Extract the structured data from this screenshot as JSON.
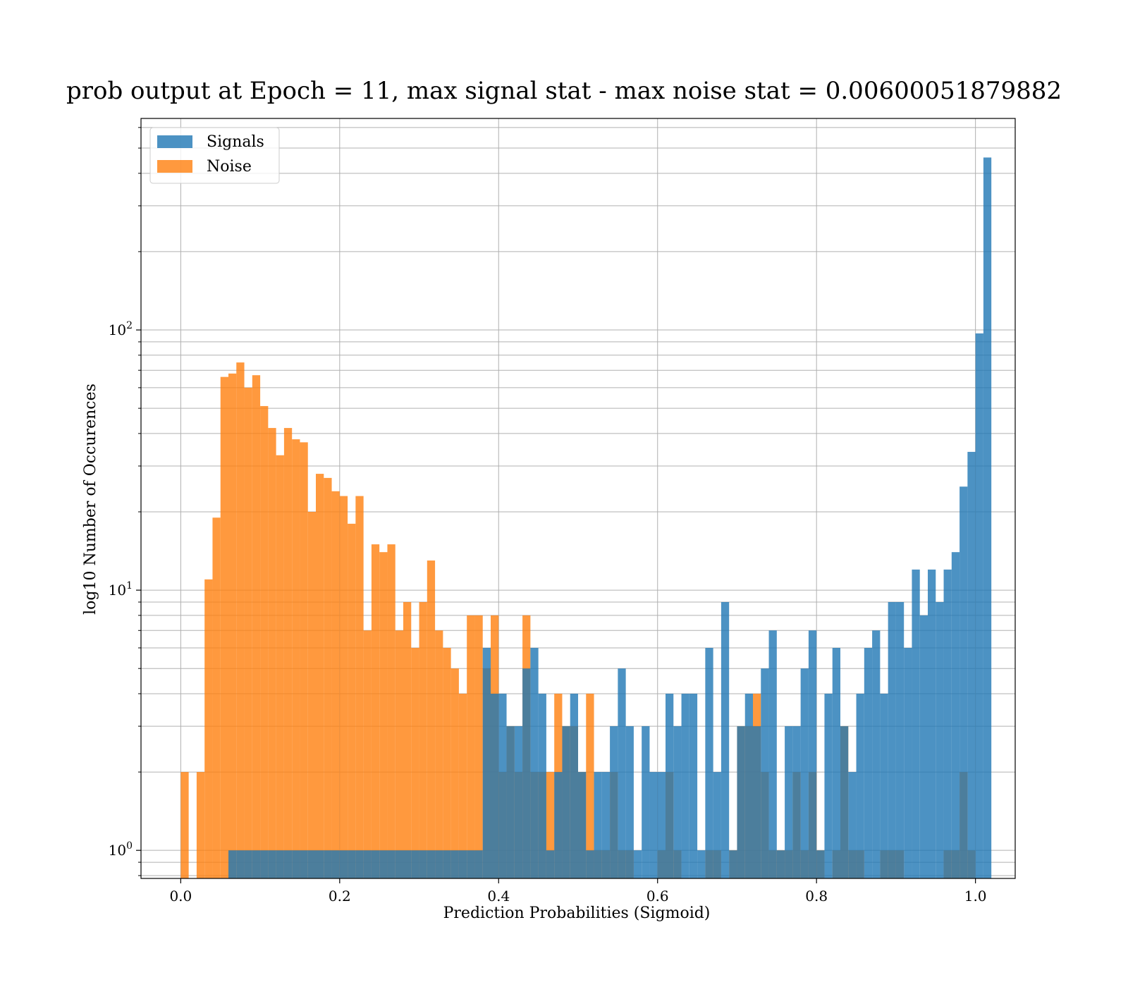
{
  "chart_data": {
    "type": "bar",
    "title": "prob output at Epoch = 11, max signal stat - max noise stat = 0.00600051879882",
    "xlabel": "Prediction Probabilities (Sigmoid)",
    "ylabel": "log10 Number of Occurences",
    "yscale": "log",
    "xlim": [
      -0.05,
      1.05
    ],
    "ylim": [
      0.78,
      650
    ],
    "x_ticks": [
      0.0,
      0.2,
      0.4,
      0.6,
      0.8,
      1.0
    ],
    "x_tick_labels": [
      "0.0",
      "0.2",
      "0.4",
      "0.6",
      "0.8",
      "1.0"
    ],
    "y_major_ticks": [
      1,
      10,
      100
    ],
    "y_tick_labels": [
      {
        "base": "10",
        "exp": "0"
      },
      {
        "base": "10",
        "exp": "1"
      },
      {
        "base": "10",
        "exp": "2"
      }
    ],
    "grid": true,
    "legend_position": "top-left",
    "bin_width": 0.01,
    "colors": {
      "signals": "#1f77b4",
      "noise": "#ff7f0e"
    },
    "series": [
      {
        "name": "Signals",
        "opacity": 0.8,
        "bins": [
          [
            0.06,
            1
          ],
          [
            0.07,
            1
          ],
          [
            0.08,
            1
          ],
          [
            0.09,
            1
          ],
          [
            0.1,
            1
          ],
          [
            0.11,
            1
          ],
          [
            0.12,
            1
          ],
          [
            0.13,
            1
          ],
          [
            0.14,
            1
          ],
          [
            0.15,
            1
          ],
          [
            0.16,
            1
          ],
          [
            0.17,
            1
          ],
          [
            0.18,
            1
          ],
          [
            0.19,
            1
          ],
          [
            0.2,
            1
          ],
          [
            0.21,
            1
          ],
          [
            0.22,
            1
          ],
          [
            0.23,
            1
          ],
          [
            0.24,
            1
          ],
          [
            0.25,
            1
          ],
          [
            0.26,
            1
          ],
          [
            0.27,
            1
          ],
          [
            0.28,
            1
          ],
          [
            0.29,
            1
          ],
          [
            0.3,
            1
          ],
          [
            0.31,
            1
          ],
          [
            0.32,
            1
          ],
          [
            0.33,
            1
          ],
          [
            0.34,
            1
          ],
          [
            0.35,
            1
          ],
          [
            0.36,
            1
          ],
          [
            0.37,
            1
          ],
          [
            0.38,
            6
          ],
          [
            0.39,
            4
          ],
          [
            0.4,
            4
          ],
          [
            0.41,
            3
          ],
          [
            0.42,
            3
          ],
          [
            0.43,
            5
          ],
          [
            0.44,
            6
          ],
          [
            0.45,
            4
          ],
          [
            0.46,
            1
          ],
          [
            0.47,
            2
          ],
          [
            0.48,
            3
          ],
          [
            0.49,
            4
          ],
          [
            0.5,
            2
          ],
          [
            0.51,
            1
          ],
          [
            0.52,
            2
          ],
          [
            0.53,
            2
          ],
          [
            0.54,
            3
          ],
          [
            0.55,
            5
          ],
          [
            0.56,
            3
          ],
          [
            0.57,
            1
          ],
          [
            0.58,
            3
          ],
          [
            0.59,
            2
          ],
          [
            0.6,
            2
          ],
          [
            0.61,
            4
          ],
          [
            0.62,
            3
          ],
          [
            0.63,
            4
          ],
          [
            0.64,
            4
          ],
          [
            0.65,
            1
          ],
          [
            0.66,
            6
          ],
          [
            0.67,
            2
          ],
          [
            0.68,
            9
          ],
          [
            0.69,
            1
          ],
          [
            0.7,
            3
          ],
          [
            0.71,
            4
          ],
          [
            0.72,
            3
          ],
          [
            0.73,
            5
          ],
          [
            0.74,
            7
          ],
          [
            0.75,
            1
          ],
          [
            0.76,
            3
          ],
          [
            0.77,
            3
          ],
          [
            0.78,
            5
          ],
          [
            0.79,
            7
          ],
          [
            0.8,
            1
          ],
          [
            0.81,
            4
          ],
          [
            0.82,
            6
          ],
          [
            0.83,
            3
          ],
          [
            0.84,
            2
          ],
          [
            0.85,
            4
          ],
          [
            0.86,
            6
          ],
          [
            0.87,
            7
          ],
          [
            0.88,
            4
          ],
          [
            0.89,
            9
          ],
          [
            0.9,
            9
          ],
          [
            0.91,
            6
          ],
          [
            0.92,
            12
          ],
          [
            0.93,
            8
          ],
          [
            0.94,
            12
          ],
          [
            0.95,
            9
          ],
          [
            0.96,
            12
          ],
          [
            0.97,
            14
          ],
          [
            0.98,
            25
          ],
          [
            0.99,
            34
          ],
          [
            1.0,
            97
          ],
          [
            1.01,
            460
          ]
        ]
      },
      {
        "name": "Noise",
        "opacity": 0.8,
        "bins": [
          [
            0.0,
            2
          ],
          [
            0.02,
            2
          ],
          [
            0.03,
            11
          ],
          [
            0.04,
            19
          ],
          [
            0.05,
            66
          ],
          [
            0.06,
            68
          ],
          [
            0.07,
            75
          ],
          [
            0.08,
            60
          ],
          [
            0.09,
            67
          ],
          [
            0.1,
            51
          ],
          [
            0.11,
            42
          ],
          [
            0.12,
            33
          ],
          [
            0.13,
            42
          ],
          [
            0.14,
            38
          ],
          [
            0.15,
            37
          ],
          [
            0.16,
            20
          ],
          [
            0.17,
            28
          ],
          [
            0.18,
            27
          ],
          [
            0.19,
            24
          ],
          [
            0.2,
            23
          ],
          [
            0.21,
            18
          ],
          [
            0.22,
            23
          ],
          [
            0.23,
            7
          ],
          [
            0.24,
            15
          ],
          [
            0.25,
            14
          ],
          [
            0.26,
            15
          ],
          [
            0.27,
            7
          ],
          [
            0.28,
            9
          ],
          [
            0.29,
            6
          ],
          [
            0.3,
            9
          ],
          [
            0.31,
            13
          ],
          [
            0.32,
            7
          ],
          [
            0.33,
            6
          ],
          [
            0.34,
            5
          ],
          [
            0.35,
            4
          ],
          [
            0.36,
            8
          ],
          [
            0.37,
            8
          ],
          [
            0.38,
            5
          ],
          [
            0.39,
            8
          ],
          [
            0.4,
            2
          ],
          [
            0.41,
            3
          ],
          [
            0.42,
            2
          ],
          [
            0.43,
            8
          ],
          [
            0.44,
            2
          ],
          [
            0.45,
            2
          ],
          [
            0.46,
            2
          ],
          [
            0.47,
            4
          ],
          [
            0.48,
            3
          ],
          [
            0.49,
            3
          ],
          [
            0.5,
            2
          ],
          [
            0.51,
            4
          ],
          [
            0.52,
            1
          ],
          [
            0.53,
            1
          ],
          [
            0.54,
            2
          ],
          [
            0.55,
            1
          ],
          [
            0.56,
            1
          ],
          [
            0.6,
            1
          ],
          [
            0.61,
            2
          ],
          [
            0.62,
            1
          ],
          [
            0.66,
            1
          ],
          [
            0.67,
            1
          ],
          [
            0.69,
            1
          ],
          [
            0.7,
            3
          ],
          [
            0.71,
            3
          ],
          [
            0.72,
            4
          ],
          [
            0.73,
            2
          ],
          [
            0.74,
            1
          ],
          [
            0.75,
            1
          ],
          [
            0.76,
            1
          ],
          [
            0.77,
            2
          ],
          [
            0.78,
            1
          ],
          [
            0.79,
            2
          ],
          [
            0.8,
            1
          ],
          [
            0.82,
            1
          ],
          [
            0.83,
            3
          ],
          [
            0.84,
            1
          ],
          [
            0.85,
            1
          ],
          [
            0.88,
            1
          ],
          [
            0.89,
            1
          ],
          [
            0.9,
            1
          ],
          [
            0.96,
            1
          ],
          [
            0.97,
            1
          ],
          [
            0.98,
            2
          ],
          [
            0.99,
            1
          ]
        ]
      }
    ]
  }
}
